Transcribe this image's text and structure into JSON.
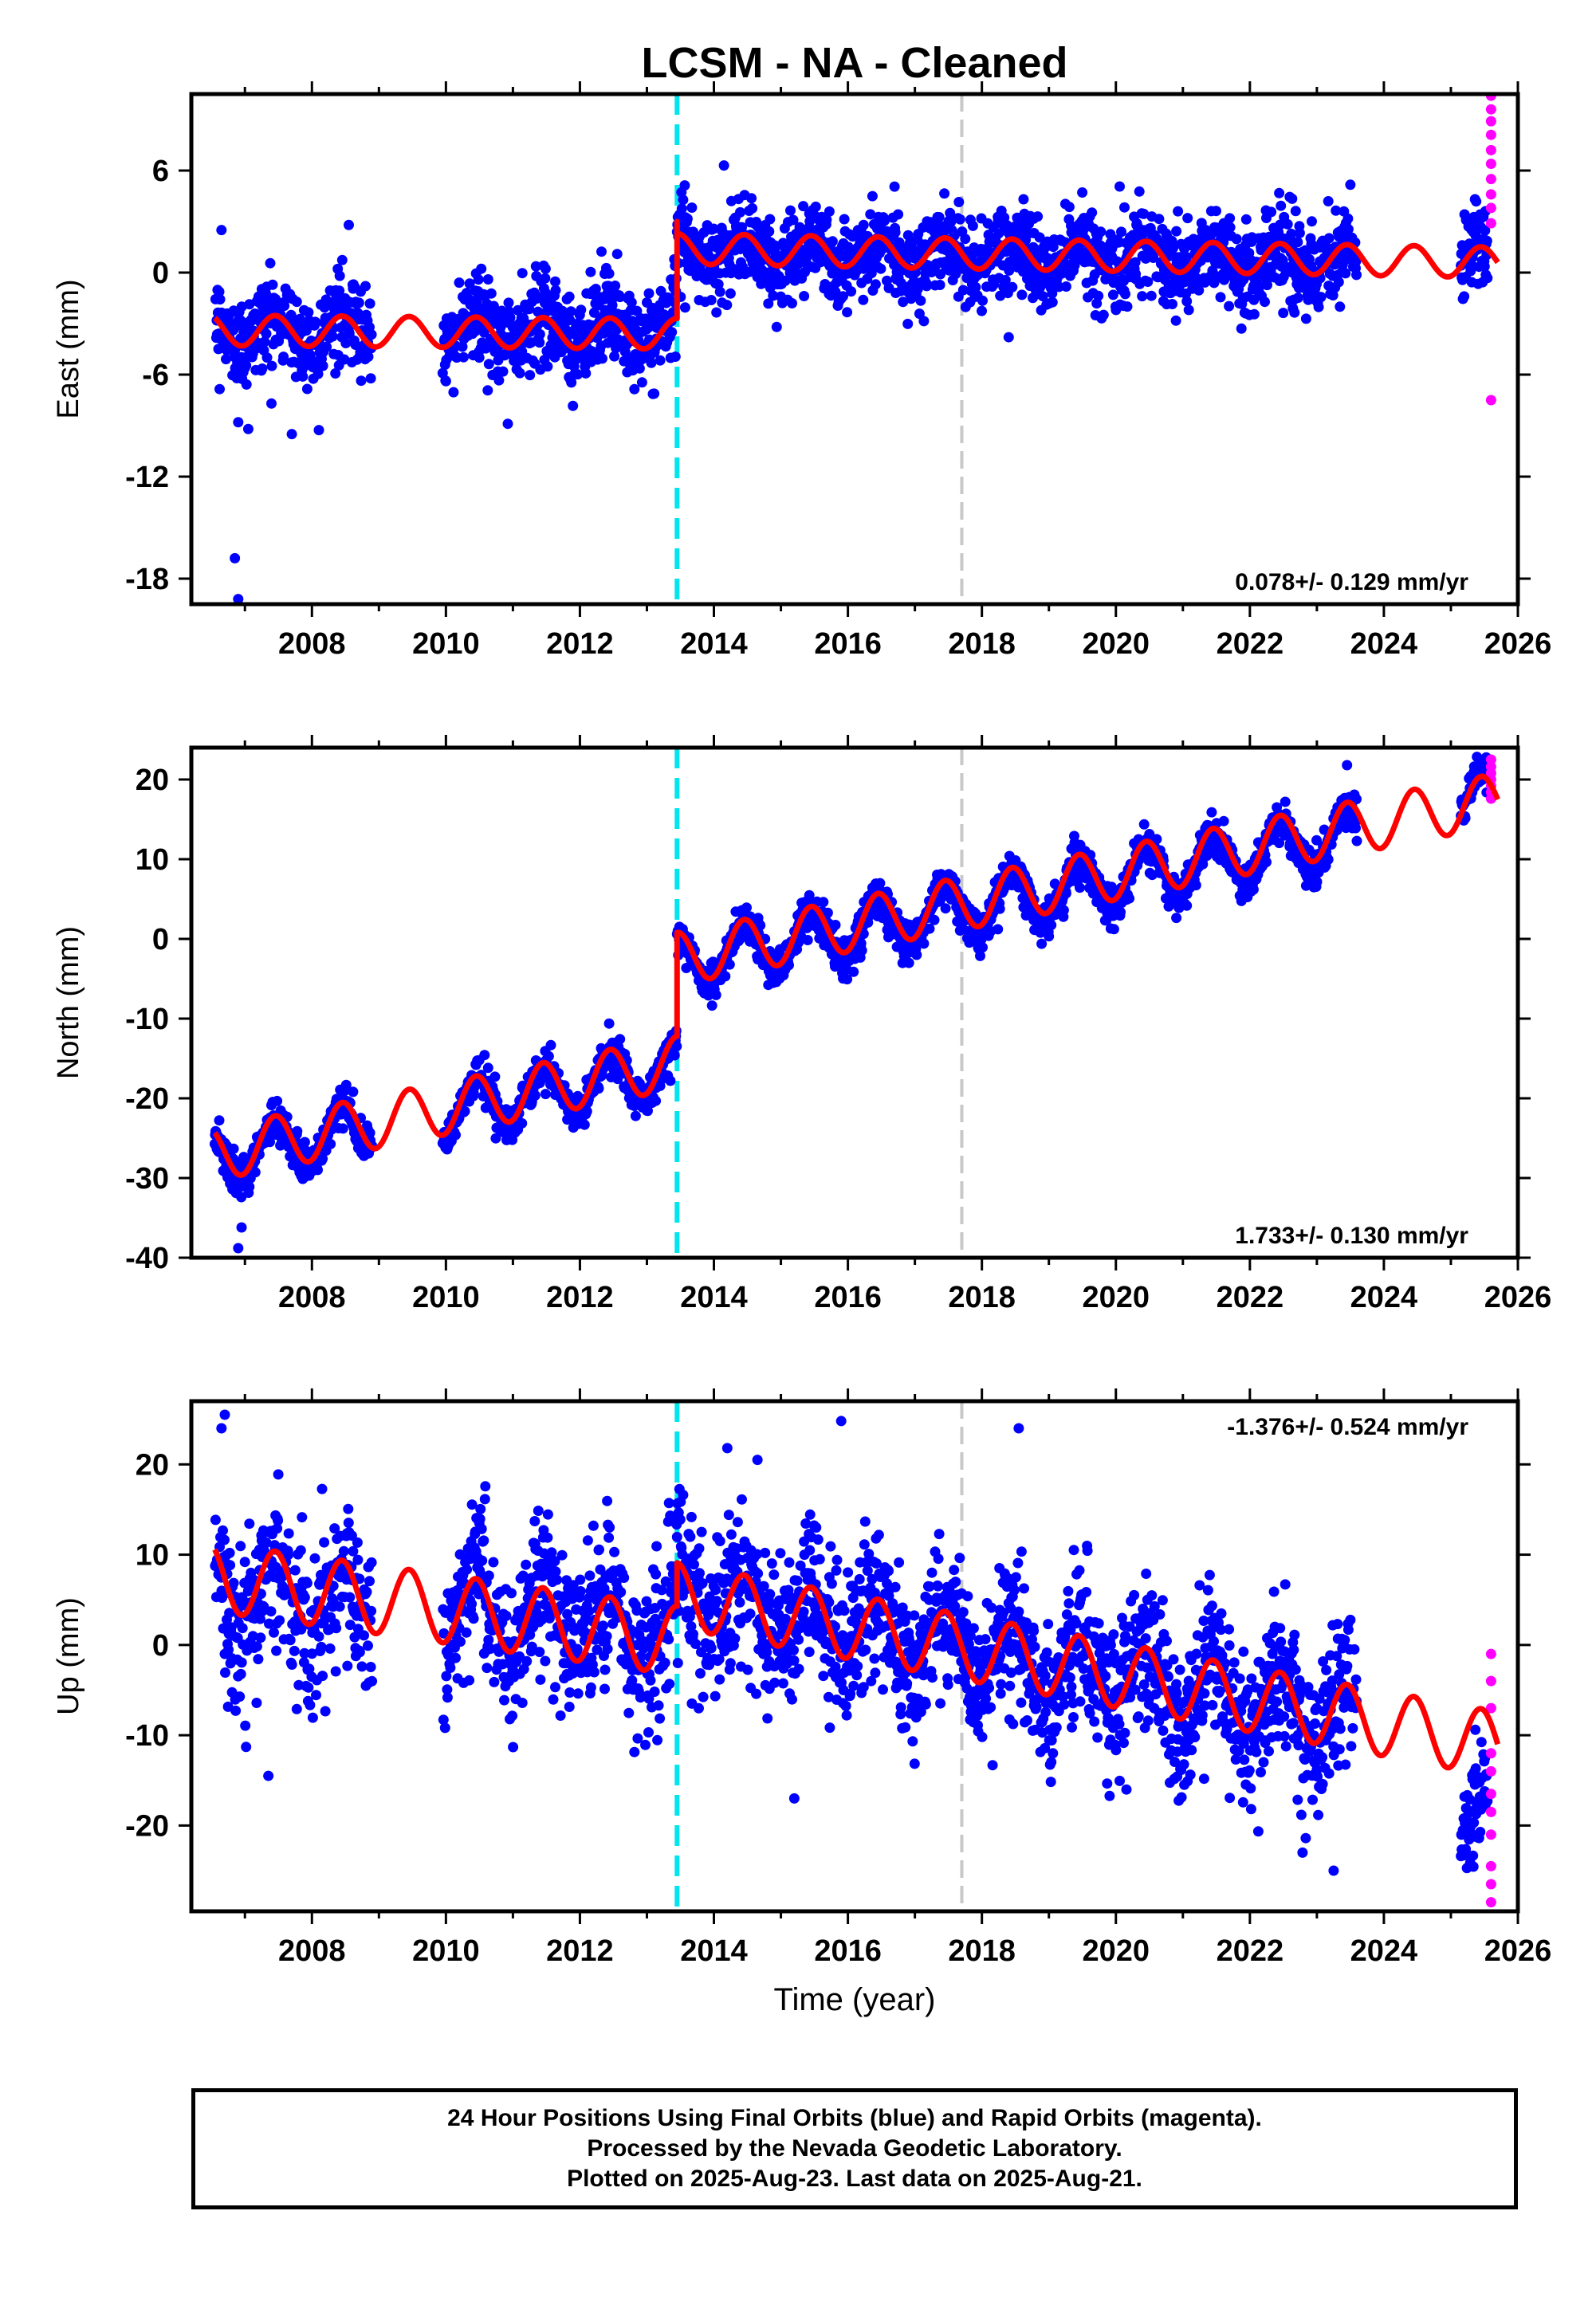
{
  "title": "LCSM  - NA - Cleaned",
  "xlabel": "Time (year)",
  "footer": {
    "line1": "24 Hour Positions Using Final Orbits (blue) and Rapid Orbits (magenta).",
    "line2": "Processed by the Nevada Geodetic Laboratory.",
    "line3": "Plotted on 2025-Aug-23. Last data on 2025-Aug-21."
  },
  "colors": {
    "final": "#0000ff",
    "rapid": "#ff00ff",
    "model": "#ff0000",
    "offset_line": "#00e5ee",
    "gray_line": "#c8c8c8"
  },
  "chart_data": [
    {
      "type": "scatter",
      "panel": "east",
      "ylabel": "East (mm)",
      "rate": "0.078+/- 0.129 mm/yr",
      "rate_pos": "bottom-right",
      "xlim": [
        2006.2,
        2026.0
      ],
      "ylim": [
        -19.5,
        10.5
      ],
      "xticks": [
        2008,
        2010,
        2012,
        2014,
        2016,
        2018,
        2020,
        2022,
        2024,
        2026
      ],
      "yticks": [
        -18,
        -12,
        -6,
        0,
        6
      ],
      "vlines": [
        {
          "x": 2013.45,
          "style": "cyan-dashed"
        },
        {
          "x": 2017.7,
          "style": "gray-dashed"
        }
      ],
      "segments": [
        {
          "x0": 2006.55,
          "x1": 2013.45,
          "y0": -3.3,
          "y1": -3.3,
          "noise": 1.3
        },
        {
          "x0": 2013.45,
          "x1": 2023.6,
          "y0": 1.2,
          "y1": 0.6,
          "noise": 1.3
        },
        {
          "x0": 2025.15,
          "x1": 2025.55,
          "y0": 1.2,
          "y1": 1.2,
          "noise": 1.3
        }
      ],
      "gaps": [
        [
          2008.9,
          2009.95
        ]
      ],
      "model": {
        "segments": [
          {
            "x0": 2006.55,
            "x1": 2013.45,
            "y0": -3.4,
            "y1": -3.6,
            "amp": 0.9
          },
          {
            "x0": 2013.45,
            "x1": 2025.7,
            "y0": 1.4,
            "y1": 0.6,
            "amp": 0.9
          }
        ],
        "spike": {
          "x": 2013.45,
          "y": 3.0
        }
      },
      "outliers": [
        {
          "x": 2006.9,
          "y": -8.8
        },
        {
          "x": 2007.05,
          "y": -9.2
        },
        {
          "x": 2007.7,
          "y": -9.5
        },
        {
          "x": 2006.85,
          "y": -16.8
        },
        {
          "x": 2006.9,
          "y": -19.2
        },
        {
          "x": 2006.65,
          "y": 2.5
        },
        {
          "x": 2008.55,
          "y": 2.8
        },
        {
          "x": 2014.15,
          "y": 6.3
        },
        {
          "x": 2018.4,
          "y": -3.8
        }
      ],
      "rapid": [
        {
          "x": 2025.6,
          "y": 10.4
        },
        {
          "x": 2025.6,
          "y": 9.6
        },
        {
          "x": 2025.6,
          "y": 8.9
        },
        {
          "x": 2025.6,
          "y": 8.1
        },
        {
          "x": 2025.6,
          "y": 7.2
        },
        {
          "x": 2025.6,
          "y": 6.4
        },
        {
          "x": 2025.6,
          "y": 5.5
        },
        {
          "x": 2025.6,
          "y": 4.6
        },
        {
          "x": 2025.6,
          "y": 3.8
        },
        {
          "x": 2025.6,
          "y": 2.9
        },
        {
          "x": 2025.6,
          "y": -7.5
        }
      ]
    },
    {
      "type": "scatter",
      "panel": "north",
      "ylabel": "North (mm)",
      "rate": "1.733+/- 0.130 mm/yr",
      "rate_pos": "bottom-right",
      "xlim": [
        2006.2,
        2026.0
      ],
      "ylim": [
        -40,
        24
      ],
      "xticks": [
        2008,
        2010,
        2012,
        2014,
        2016,
        2018,
        2020,
        2022,
        2024,
        2026
      ],
      "yticks": [
        -40,
        -30,
        -20,
        -10,
        0,
        10,
        20
      ],
      "vlines": [
        {
          "x": 2013.45,
          "style": "cyan-dashed"
        },
        {
          "x": 2017.7,
          "style": "gray-dashed"
        }
      ],
      "segments": [
        {
          "x0": 2006.55,
          "x1": 2013.45,
          "y0": -27.5,
          "y1": -16.0,
          "noise": 1.2
        },
        {
          "x0": 2013.45,
          "x1": 2023.6,
          "y0": -3.0,
          "y1": 13.0,
          "noise": 1.2
        },
        {
          "x0": 2025.15,
          "x1": 2025.55,
          "y0": 17.0,
          "y1": 18.0,
          "noise": 1.2
        }
      ],
      "gaps": [
        [
          2008.9,
          2009.95
        ]
      ],
      "model": {
        "segments": [
          {
            "x0": 2006.55,
            "x1": 2013.45,
            "y0": -27.0,
            "y1": -15.5,
            "amp": 3.3
          },
          {
            "x0": 2013.45,
            "x1": 2025.7,
            "y0": -2.5,
            "y1": 17.5,
            "amp": 3.3
          }
        ],
        "spike": null
      },
      "outliers": [
        {
          "x": 2006.95,
          "y": -36.2
        },
        {
          "x": 2006.9,
          "y": -38.8
        },
        {
          "x": 2013.35,
          "y": -17.8
        },
        {
          "x": 2023.45,
          "y": 21.8
        }
      ],
      "rapid": [
        {
          "x": 2025.6,
          "y": 22.5
        },
        {
          "x": 2025.6,
          "y": 21.6
        },
        {
          "x": 2025.6,
          "y": 20.8
        },
        {
          "x": 2025.6,
          "y": 20.0
        },
        {
          "x": 2025.6,
          "y": 19.2
        },
        {
          "x": 2025.6,
          "y": 18.4
        },
        {
          "x": 2025.6,
          "y": 17.6
        }
      ]
    },
    {
      "type": "scatter",
      "panel": "up",
      "ylabel": "Up (mm)",
      "rate": "-1.376+/- 0.524 mm/yr",
      "rate_pos": "top-right",
      "xlim": [
        2006.2,
        2026.0
      ],
      "ylim": [
        -29.5,
        27
      ],
      "xticks": [
        2008,
        2010,
        2012,
        2014,
        2016,
        2018,
        2020,
        2022,
        2024,
        2026
      ],
      "yticks": [
        -20,
        -10,
        0,
        10,
        20
      ],
      "vlines": [
        {
          "x": 2013.45,
          "style": "cyan-dashed"
        },
        {
          "x": 2017.7,
          "style": "gray-dashed"
        }
      ],
      "segments": [
        {
          "x0": 2006.55,
          "x1": 2013.45,
          "y0": 5.5,
          "y1": 2.0,
          "noise": 4.2
        },
        {
          "x0": 2013.45,
          "x1": 2023.6,
          "y0": 6.0,
          "y1": -8.5,
          "noise": 4.0
        },
        {
          "x0": 2025.15,
          "x1": 2025.55,
          "y0": -20.0,
          "y1": -20.0,
          "noise": 3.5
        }
      ],
      "gaps": [
        [
          2008.9,
          2009.95
        ]
      ],
      "model": {
        "segments": [
          {
            "x0": 2006.55,
            "x1": 2013.45,
            "y0": 7.5,
            "y1": 0.5,
            "amp": 3.8
          },
          {
            "x0": 2013.45,
            "x1": 2025.7,
            "y0": 5.5,
            "y1": -11.0,
            "amp": 3.6
          }
        ],
        "spike": null
      },
      "outliers": [
        {
          "x": 2006.7,
          "y": 25.5
        },
        {
          "x": 2006.65,
          "y": 24.0
        },
        {
          "x": 2007.35,
          "y": -14.5
        },
        {
          "x": 2014.2,
          "y": 21.8
        },
        {
          "x": 2014.65,
          "y": 20.5
        },
        {
          "x": 2015.9,
          "y": 24.8
        },
        {
          "x": 2018.55,
          "y": 24.0
        },
        {
          "x": 2015.2,
          "y": -17.0
        },
        {
          "x": 2023.25,
          "y": -25.0
        }
      ],
      "rapid": [
        {
          "x": 2025.6,
          "y": -1.0
        },
        {
          "x": 2025.6,
          "y": -4.0
        },
        {
          "x": 2025.6,
          "y": -7.0
        },
        {
          "x": 2025.6,
          "y": -12.0
        },
        {
          "x": 2025.6,
          "y": -14.0
        },
        {
          "x": 2025.6,
          "y": -16.5
        },
        {
          "x": 2025.6,
          "y": -18.5
        },
        {
          "x": 2025.6,
          "y": -21.0
        },
        {
          "x": 2025.6,
          "y": -24.5
        },
        {
          "x": 2025.6,
          "y": -26.5
        },
        {
          "x": 2025.6,
          "y": -28.5
        }
      ]
    }
  ]
}
